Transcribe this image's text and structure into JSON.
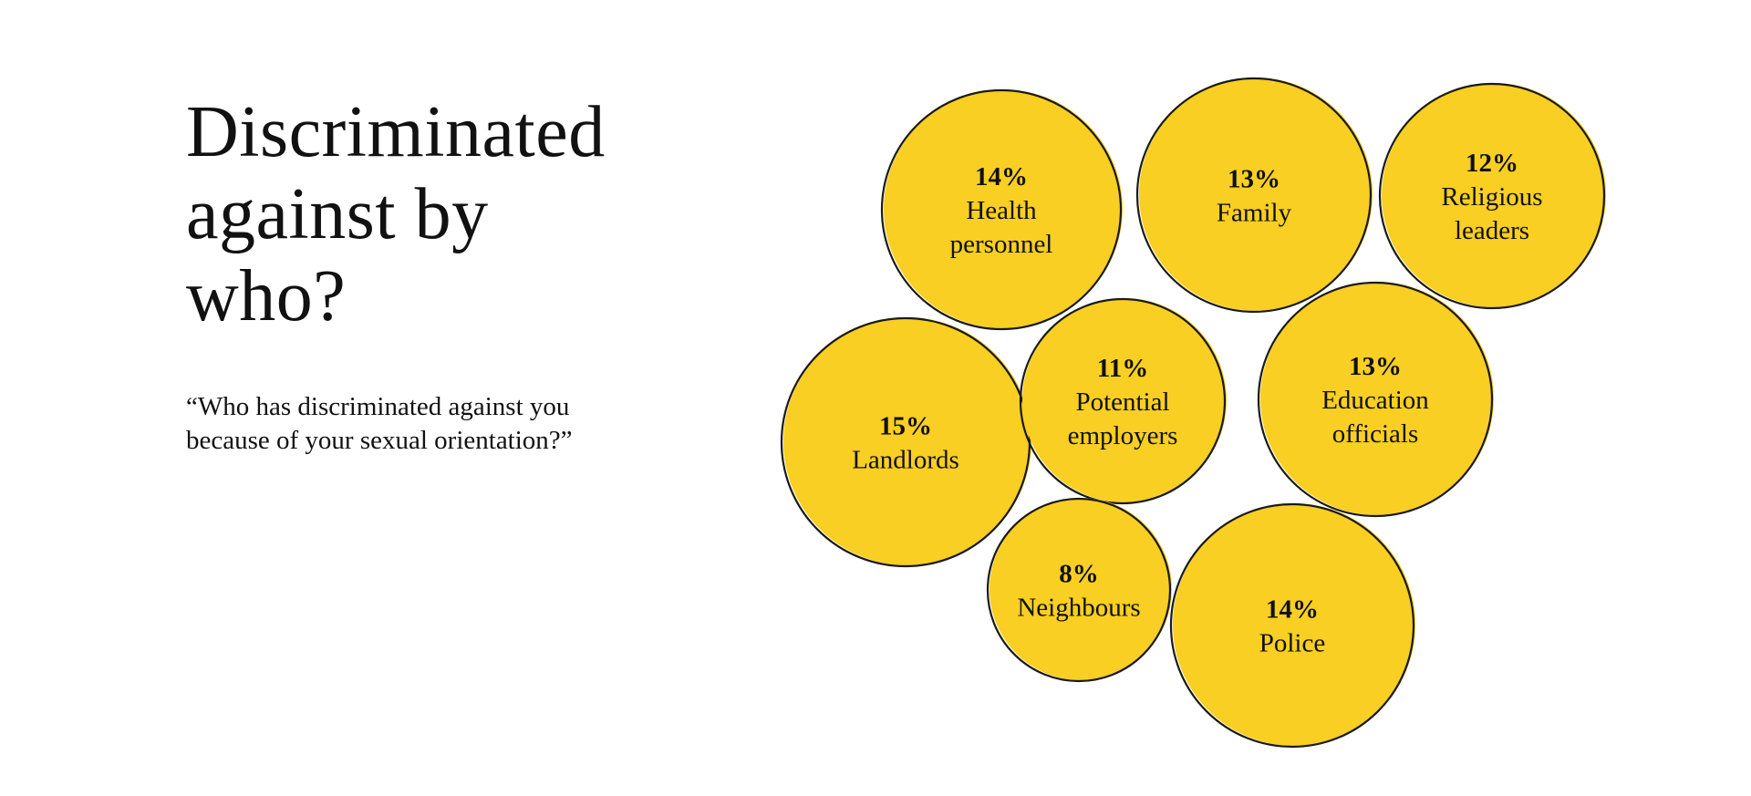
{
  "title": {
    "lines": [
      "Discriminated",
      "against by",
      "who?"
    ]
  },
  "subtitle": {
    "lines": [
      "“Who has discriminated against you",
      "because of your sexual orientation?”"
    ]
  },
  "colors": {
    "bubble_fill": "#F8CF22",
    "bubble_stroke": "#1a1a1a",
    "text": "#111111"
  },
  "chart_data": {
    "type": "bubble",
    "title": "Discriminated against by who?",
    "subtitle": "“Who has discriminated against you because of your sexual orientation?”",
    "unit": "%",
    "items": [
      {
        "label": "Health personnel",
        "label_lines": [
          "Health",
          "personnel"
        ],
        "value": 14,
        "display": "14%"
      },
      {
        "label": "Family",
        "label_lines": [
          "Family"
        ],
        "value": 13,
        "display": "13%"
      },
      {
        "label": "Religious leaders",
        "label_lines": [
          "Religious",
          "leaders"
        ],
        "value": 12,
        "display": "12%"
      },
      {
        "label": "Landlords",
        "label_lines": [
          "Landlords"
        ],
        "value": 15,
        "display": "15%"
      },
      {
        "label": "Potential employers",
        "label_lines": [
          "Potential",
          "employers"
        ],
        "value": 11,
        "display": "11%"
      },
      {
        "label": "Education officials",
        "label_lines": [
          "Education",
          "officials"
        ],
        "value": 13,
        "display": "13%"
      },
      {
        "label": "Neighbours",
        "label_lines": [
          "Neighbours"
        ],
        "value": 8,
        "display": "8%"
      },
      {
        "label": "Police",
        "label_lines": [
          "Police"
        ],
        "value": 14,
        "display": "14%"
      }
    ]
  }
}
